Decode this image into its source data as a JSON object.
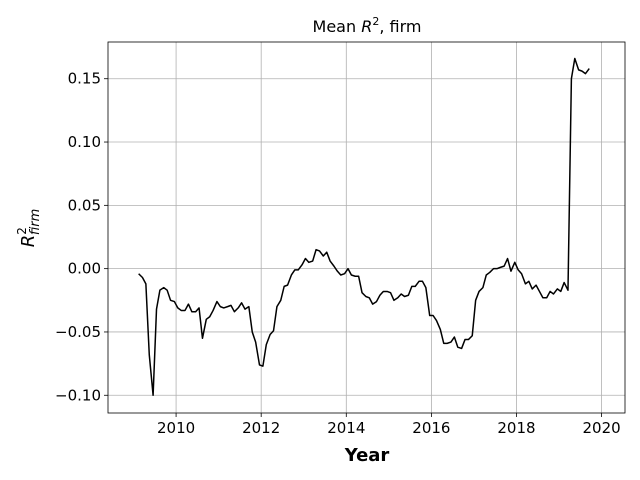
{
  "chart_data": {
    "type": "line",
    "title_prefix": "Mean ",
    "title_var": "R",
    "title_sup": "2",
    "title_suffix": ", firm",
    "xlabel": "Year",
    "ylabel_main": "R",
    "ylabel_sup": "2",
    "ylabel_sub": "firm",
    "xlim": [
      2008.4,
      2020.55
    ],
    "ylim": [
      -0.114,
      0.179
    ],
    "grid": true,
    "x_ticks": [
      2010,
      2012,
      2014,
      2016,
      2018,
      2020
    ],
    "x_tick_labels": [
      "2010",
      "2012",
      "2014",
      "2016",
      "2018",
      "2020"
    ],
    "y_ticks": [
      -0.1,
      -0.05,
      0.0,
      0.05,
      0.1,
      0.15
    ],
    "y_tick_labels": [
      "−0.10",
      "−0.05",
      "0.00",
      "0.05",
      "0.10",
      "0.15"
    ],
    "line_color": "#000000",
    "grid_color": "#b0b0b0",
    "series": [
      {
        "x": [
          2009.12,
          2009.21,
          2009.29,
          2009.37,
          2009.46,
          2009.54,
          2009.62,
          2009.71,
          2009.79,
          2009.87,
          2009.96,
          2010.04,
          2010.12,
          2010.21,
          2010.29,
          2010.37,
          2010.46,
          2010.54,
          2010.62,
          2010.71,
          2010.79,
          2010.87,
          2010.96,
          2011.04,
          2011.12,
          2011.21,
          2011.29,
          2011.37,
          2011.46,
          2011.54,
          2011.62,
          2011.71,
          2011.79,
          2011.87,
          2011.96,
          2012.04,
          2012.12,
          2012.21,
          2012.29,
          2012.37,
          2012.46,
          2012.54,
          2012.62,
          2012.71,
          2012.79,
          2012.87,
          2012.96,
          2013.04,
          2013.12,
          2013.21,
          2013.29,
          2013.37,
          2013.46,
          2013.54,
          2013.62,
          2013.71,
          2013.79,
          2013.87,
          2013.96,
          2014.04,
          2014.12,
          2014.21,
          2014.29,
          2014.37,
          2014.46,
          2014.54,
          2014.62,
          2014.71,
          2014.79,
          2014.87,
          2014.96,
          2015.04,
          2015.12,
          2015.21,
          2015.29,
          2015.37,
          2015.46,
          2015.54,
          2015.62,
          2015.71,
          2015.79,
          2015.87,
          2015.96,
          2016.04,
          2016.12,
          2016.21,
          2016.29,
          2016.37,
          2016.46,
          2016.54,
          2016.62,
          2016.71,
          2016.79,
          2016.87,
          2016.96,
          2017.04,
          2017.12,
          2017.21,
          2017.29,
          2017.37,
          2017.46,
          2017.54,
          2017.62,
          2017.71,
          2017.79,
          2017.87,
          2017.96,
          2018.04,
          2018.12,
          2018.21,
          2018.29,
          2018.37,
          2018.46,
          2018.54,
          2018.62,
          2018.71,
          2018.79,
          2018.87,
          2018.96,
          2019.04,
          2019.12,
          2019.21,
          2019.29,
          2019.37,
          2019.46,
          2019.54,
          2019.62,
          2019.71
        ],
        "y": [
          -0.004,
          -0.007,
          -0.012,
          -0.068,
          -0.1,
          -0.032,
          -0.017,
          -0.015,
          -0.017,
          -0.025,
          -0.026,
          -0.031,
          -0.033,
          -0.033,
          -0.028,
          -0.034,
          -0.034,
          -0.031,
          -0.055,
          -0.04,
          -0.038,
          -0.033,
          -0.026,
          -0.03,
          -0.031,
          -0.03,
          -0.029,
          -0.034,
          -0.031,
          -0.027,
          -0.032,
          -0.03,
          -0.05,
          -0.058,
          -0.076,
          -0.077,
          -0.06,
          -0.052,
          -0.049,
          -0.03,
          -0.025,
          -0.014,
          -0.013,
          -0.005,
          -0.001,
          -0.001,
          0.003,
          0.008,
          0.005,
          0.006,
          0.015,
          0.014,
          0.01,
          0.013,
          0.006,
          0.002,
          -0.002,
          -0.005,
          -0.004,
          0.0,
          -0.005,
          -0.006,
          -0.006,
          -0.019,
          -0.022,
          -0.023,
          -0.028,
          -0.026,
          -0.021,
          -0.018,
          -0.018,
          -0.019,
          -0.025,
          -0.023,
          -0.02,
          -0.022,
          -0.021,
          -0.014,
          -0.014,
          -0.01,
          -0.01,
          -0.015,
          -0.037,
          -0.037,
          -0.041,
          -0.048,
          -0.059,
          -0.059,
          -0.058,
          -0.054,
          -0.062,
          -0.063,
          -0.056,
          -0.056,
          -0.053,
          -0.025,
          -0.018,
          -0.015,
          -0.005,
          -0.003,
          0.0,
          0.0,
          0.001,
          0.002,
          0.008,
          -0.002,
          0.005,
          -0.001,
          -0.004,
          -0.012,
          -0.01,
          -0.016,
          -0.013,
          -0.018,
          -0.023,
          -0.023,
          -0.018,
          -0.02,
          -0.016,
          -0.018,
          -0.011,
          -0.017,
          0.15,
          0.166,
          0.157,
          0.156,
          0.154,
          0.158
        ]
      }
    ]
  }
}
